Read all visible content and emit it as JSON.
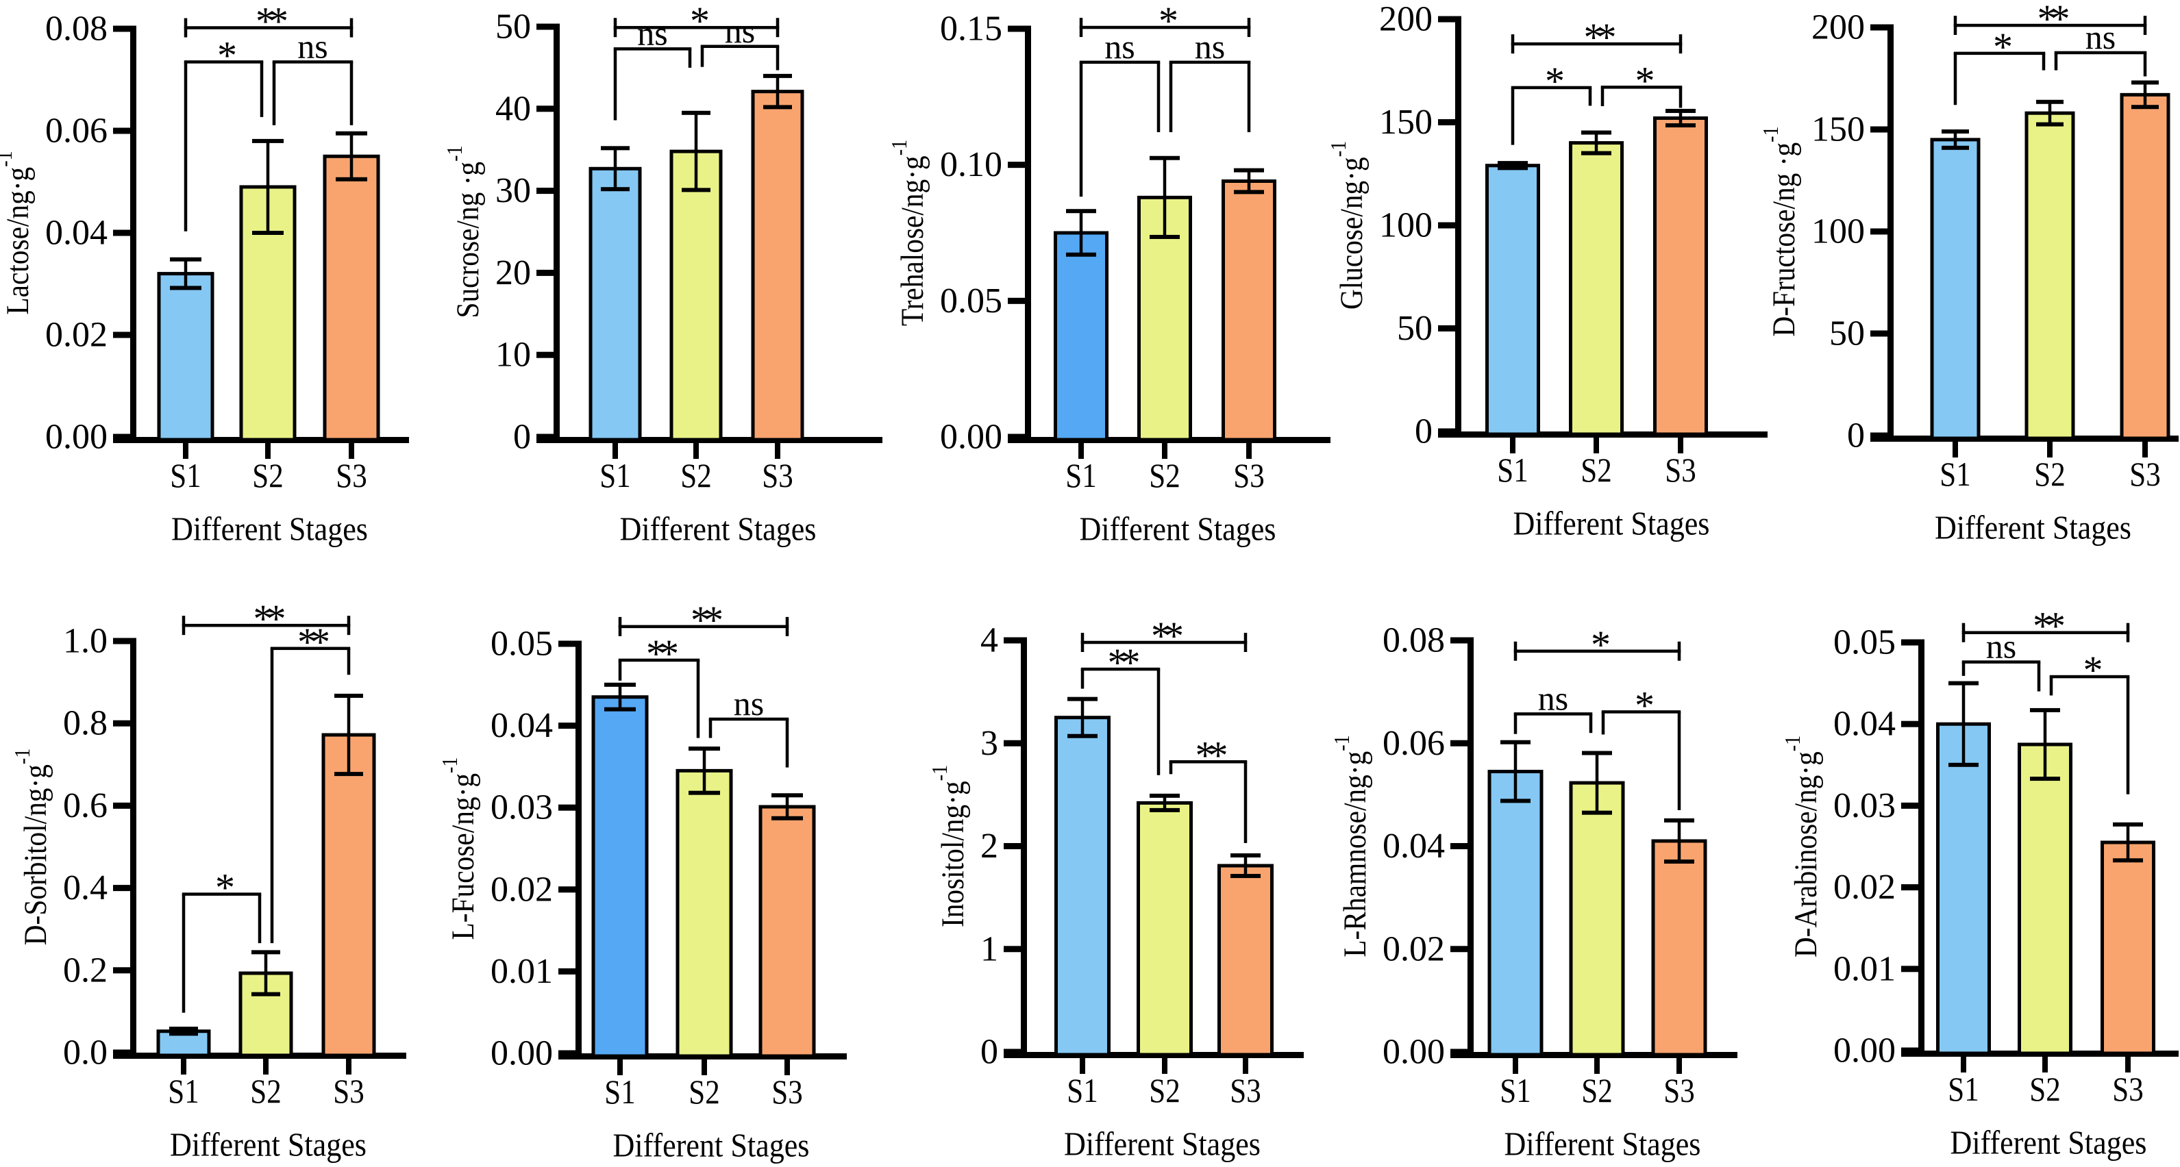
{
  "figure": {
    "background": "#ffffff",
    "rows": 2,
    "columns": 5,
    "description": "Ten bar charts of sugar contents at three developmental stages with significance brackets"
  },
  "palette": {
    "bar_blue_light": "#85C8F3",
    "bar_blue_dark": "#55A8F4",
    "bar_yellow_green": "#E9F287",
    "bar_orange": "#F9A46F",
    "ink": "#000000"
  },
  "chart_data": [
    {
      "type": "bar",
      "ylabel_base": "Lactose/ng·g",
      "ylabel_sup": "-1",
      "xlabel": "Different Stages",
      "categories": [
        "S1",
        "S2",
        "S3"
      ],
      "values": [
        0.032,
        0.049,
        0.055
      ],
      "errors": [
        0.0028,
        0.009,
        0.0045
      ],
      "bar_colors": [
        "#85C8F3",
        "#E9F287",
        "#F9A46F"
      ],
      "ylim": [
        0,
        0.08
      ],
      "yticks": [
        "0.00",
        "0.02",
        "0.04",
        "0.06",
        "0.08"
      ],
      "significance": [
        {
          "pair": [
            0,
            1
          ],
          "label": "*",
          "line": 0.0735,
          "arm_a": 0.0403,
          "arm_b": 0.0627
        },
        {
          "pair": [
            1,
            2
          ],
          "label": "ns",
          "line": 0.0735,
          "arm_a": 0.0611,
          "arm_b": 0.0611
        },
        {
          "pair": [
            0,
            2
          ],
          "label": "**",
          "line": 0.0802,
          "caps": true
        }
      ]
    },
    {
      "type": "bar",
      "ylabel_base": "Sucrose/ng ·g",
      "ylabel_sup": "-1",
      "xlabel": "Different Stages",
      "categories": [
        "S1",
        "S2",
        "S3"
      ],
      "values": [
        32.7,
        34.8,
        42.1
      ],
      "errors": [
        2.5,
        4.7,
        1.9
      ],
      "bar_colors": [
        "#85C8F3",
        "#E9F287",
        "#F9A46F"
      ],
      "ylim": [
        0,
        50
      ],
      "yticks": [
        "0",
        "10",
        "20",
        "30",
        "40",
        "50"
      ],
      "significance": [
        {
          "pair": [
            0,
            1
          ],
          "label": "ns",
          "line": 47.3,
          "arm_a": 38.6,
          "arm_b": 45.0
        },
        {
          "pair": [
            1,
            2
          ],
          "label": "ns",
          "line": 47.6,
          "arm_a": 45.1,
          "arm_b": 44.7
        },
        {
          "pair": [
            0,
            2
          ],
          "label": "*",
          "line": 49.9,
          "caps": true
        }
      ]
    },
    {
      "type": "bar",
      "ylabel_base": "Trehalose/ng·g",
      "ylabel_sup": "-1",
      "xlabel": "Different Stages",
      "categories": [
        "S1",
        "S2",
        "S3"
      ],
      "values": [
        0.075,
        0.088,
        0.094
      ],
      "errors": [
        0.008,
        0.0145,
        0.004
      ],
      "bar_colors": [
        "#55A8F4",
        "#E9F287",
        "#F9A46F"
      ],
      "ylim": [
        0,
        0.15
      ],
      "yticks": [
        "0.00",
        "0.05",
        "0.10",
        "0.15"
      ],
      "significance": [
        {
          "pair": [
            0,
            1
          ],
          "label": "ns",
          "line": 0.1377,
          "arm_a": 0.0883,
          "arm_b": 0.112
        },
        {
          "pair": [
            1,
            2
          ],
          "label": "ns",
          "line": 0.1377,
          "arm_a": 0.112,
          "arm_b": 0.112
        },
        {
          "pair": [
            0,
            2
          ],
          "label": "*",
          "line": 0.1505,
          "caps": true
        }
      ]
    },
    {
      "type": "bar",
      "ylabel_base": "Glucose/ng·g",
      "ylabel_sup": "-1",
      "xlabel": "Different Stages",
      "categories": [
        "S1",
        "S2",
        "S3"
      ],
      "values": [
        129,
        140,
        152
      ],
      "errors": [
        1.2,
        5,
        3.5
      ],
      "bar_colors": [
        "#85C8F3",
        "#E9F287",
        "#F9A46F"
      ],
      "ylim": [
        0,
        200
      ],
      "yticks": [
        "0",
        "50",
        "100",
        "150",
        "200"
      ],
      "significance": [
        {
          "pair": [
            0,
            1
          ],
          "label": "*",
          "line": 166.8,
          "arm_a": 139.0,
          "arm_b": 158.0
        },
        {
          "pair": [
            1,
            2
          ],
          "label": "*",
          "line": 167.0,
          "arm_a": 157.8,
          "arm_b": 157.0
        },
        {
          "pair": [
            0,
            2
          ],
          "label": "**",
          "line": 188.0,
          "caps": true
        }
      ]
    },
    {
      "type": "bar",
      "ylabel_base": "D-Fructose/ng ·g",
      "ylabel_sup": "-1",
      "xlabel": "Different Stages",
      "categories": [
        "S1",
        "S2",
        "S3"
      ],
      "values": [
        145,
        158,
        167
      ],
      "errors": [
        4,
        5.5,
        6
      ],
      "bar_colors": [
        "#85C8F3",
        "#E9F287",
        "#F9A46F"
      ],
      "ylim": [
        0,
        200
      ],
      "yticks": [
        "0",
        "50",
        "100",
        "150",
        "200"
      ],
      "significance": [
        {
          "pair": [
            0,
            1
          ],
          "label": "*",
          "line": 187.3,
          "arm_a": 162.0,
          "arm_b": 179.0
        },
        {
          "pair": [
            1,
            2
          ],
          "label": "ns",
          "line": 187.6,
          "arm_a": 179.0,
          "arm_b": 176.0
        },
        {
          "pair": [
            0,
            2
          ],
          "label": "**",
          "line": 201.0,
          "caps": true
        }
      ]
    },
    {
      "type": "bar",
      "ylabel_base": "D-Sorbitol/ng·g",
      "ylabel_sup": "-1",
      "xlabel": "Different Stages",
      "categories": [
        "S1",
        "S2",
        "S3"
      ],
      "values": [
        0.052,
        0.193,
        0.772
      ],
      "errors": [
        0.006,
        0.051,
        0.095
      ],
      "bar_colors": [
        "#85C8F3",
        "#E9F287",
        "#F9A46F"
      ],
      "ylim": [
        0,
        1.0
      ],
      "yticks": [
        "0.0",
        "0.2",
        "0.4",
        "0.6",
        "0.8",
        "1.0"
      ],
      "significance": [
        {
          "pair": [
            0,
            1
          ],
          "label": "*",
          "line": 0.385,
          "arm_a": 0.097,
          "arm_b": 0.266
        },
        {
          "pair": [
            1,
            2
          ],
          "label": "**",
          "line": 0.982,
          "arm_a": 0.266,
          "arm_b": 0.918
        },
        {
          "pair": [
            0,
            2
          ],
          "label": "**",
          "line": 1.038,
          "caps": true
        }
      ]
    },
    {
      "type": "bar",
      "ylabel_base": "L-Fucose/ng·g",
      "ylabel_sup": "-1",
      "xlabel": "Different Stages",
      "categories": [
        "S1",
        "S2",
        "S3"
      ],
      "values": [
        0.0435,
        0.0345,
        0.0301
      ],
      "errors": [
        0.0015,
        0.0027,
        0.0014
      ],
      "bar_colors": [
        "#55A8F4",
        "#E9F287",
        "#F9A46F"
      ],
      "ylim": [
        0,
        0.05
      ],
      "yticks": [
        "0.00",
        "0.01",
        "0.02",
        "0.03",
        "0.04",
        "0.05"
      ],
      "significance": [
        {
          "pair": [
            0,
            1
          ],
          "label": "**",
          "line": 0.048,
          "arm_a": 0.0455,
          "arm_b": 0.0385
        },
        {
          "pair": [
            1,
            2
          ],
          "label": "ns",
          "line": 0.0408,
          "arm_a": 0.0385,
          "arm_b": 0.0349
        },
        {
          "pair": [
            0,
            2
          ],
          "label": "**",
          "line": 0.0521,
          "caps": true
        }
      ]
    },
    {
      "type": "bar",
      "ylabel_base": "Inositol/ng·g",
      "ylabel_sup": "-1",
      "xlabel": "Different Stages",
      "categories": [
        "S1",
        "S2",
        "S3"
      ],
      "values": [
        3.25,
        2.42,
        1.81
      ],
      "errors": [
        0.18,
        0.07,
        0.1
      ],
      "bar_colors": [
        "#85C8F3",
        "#E9F287",
        "#F9A46F"
      ],
      "ylim": [
        0,
        4
      ],
      "yticks": [
        "0",
        "1",
        "2",
        "3",
        "4"
      ],
      "significance": [
        {
          "pair": [
            0,
            1
          ],
          "label": "**",
          "line": 3.72,
          "arm_a": 3.53,
          "arm_b": 2.69
        },
        {
          "pair": [
            1,
            2
          ],
          "label": "**",
          "line": 2.82,
          "arm_a": 2.7,
          "arm_b": 2.03
        },
        {
          "pair": [
            0,
            2
          ],
          "label": "**",
          "line": 3.98,
          "caps": true
        }
      ]
    },
    {
      "type": "bar",
      "ylabel_base": "L-Rhamnose/ng·g",
      "ylabel_sup": "-1",
      "xlabel": "Different Stages",
      "categories": [
        "S1",
        "S2",
        "S3"
      ],
      "values": [
        0.0545,
        0.0523,
        0.041
      ],
      "errors": [
        0.0057,
        0.0058,
        0.004
      ],
      "bar_colors": [
        "#85C8F3",
        "#E9F287",
        "#F9A46F"
      ],
      "ylim": [
        0,
        0.08
      ],
      "yticks": [
        "0.00",
        "0.02",
        "0.04",
        "0.06",
        "0.08"
      ],
      "significance": [
        {
          "pair": [
            0,
            1
          ],
          "label": "ns",
          "line": 0.0657,
          "arm_a": 0.0618,
          "arm_b": 0.062
        },
        {
          "pair": [
            1,
            2
          ],
          "label": "*",
          "line": 0.0661,
          "arm_a": 0.0617,
          "arm_b": 0.047
        },
        {
          "pair": [
            0,
            2
          ],
          "label": "*",
          "line": 0.0779,
          "caps": true
        }
      ]
    },
    {
      "type": "bar",
      "ylabel_base": "D-Arabinose/ng·g",
      "ylabel_sup": "-1",
      "xlabel": "Different Stages",
      "categories": [
        "S1",
        "S2",
        "S3"
      ],
      "values": [
        0.04,
        0.0375,
        0.0255
      ],
      "errors": [
        0.005,
        0.0042,
        0.0022
      ],
      "bar_colors": [
        "#85C8F3",
        "#E9F287",
        "#F9A46F"
      ],
      "ylim": [
        0,
        0.05
      ],
      "yticks": [
        "0.00",
        "0.01",
        "0.02",
        "0.03",
        "0.04",
        "0.05"
      ],
      "significance": [
        {
          "pair": [
            0,
            1
          ],
          "label": "ns",
          "line": 0.0476,
          "arm_a": 0.0459,
          "arm_b": 0.044
        },
        {
          "pair": [
            1,
            2
          ],
          "label": "*",
          "line": 0.0458,
          "arm_a": 0.0435,
          "arm_b": 0.0314
        },
        {
          "pair": [
            0,
            2
          ],
          "label": "**",
          "line": 0.0512,
          "caps": true
        }
      ]
    }
  ]
}
